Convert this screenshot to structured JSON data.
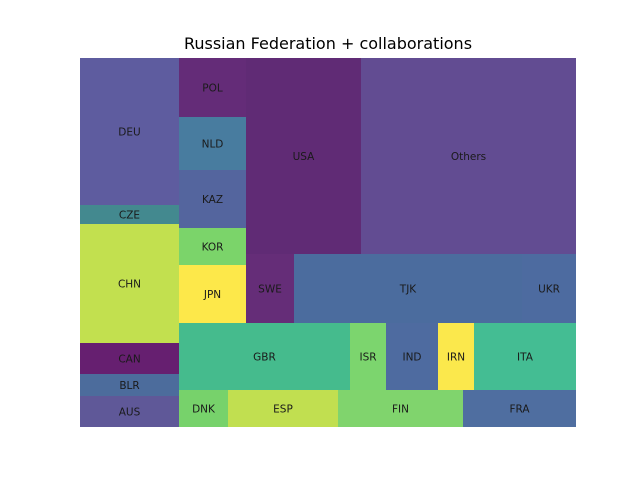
{
  "chart_data": {
    "type": "treemap",
    "title": "Russian Federation + collaborations",
    "items": [
      {
        "label": "DEU",
        "color": "#5e5c9f"
      },
      {
        "label": "CZE",
        "color": "#43898f"
      },
      {
        "label": "CHN",
        "color": "#c2e04f"
      },
      {
        "label": "CAN",
        "color": "#661f70"
      },
      {
        "label": "BLR",
        "color": "#4c6c9c"
      },
      {
        "label": "AUS",
        "color": "#5f5898"
      },
      {
        "label": "POL",
        "color": "#642c78"
      },
      {
        "label": "NLD",
        "color": "#487c9f"
      },
      {
        "label": "KAZ",
        "color": "#54659e"
      },
      {
        "label": "KOR",
        "color": "#7bd46a"
      },
      {
        "label": "JPN",
        "color": "#fde84a"
      },
      {
        "label": "DNK",
        "color": "#77d26b"
      },
      {
        "label": "USA",
        "color": "#602b75"
      },
      {
        "label": "SWE",
        "color": "#652d78"
      },
      {
        "label": "ESP",
        "color": "#c1df50"
      },
      {
        "label": "Others",
        "color": "#624c92"
      },
      {
        "label": "TJK",
        "color": "#4b6c9e"
      },
      {
        "label": "UKR",
        "color": "#4d6ba0"
      },
      {
        "label": "GBR",
        "color": "#45bb8d"
      },
      {
        "label": "ISR",
        "color": "#7cd56e"
      },
      {
        "label": "IND",
        "color": "#4e6ba0"
      },
      {
        "label": "IRN",
        "color": "#fbe84c"
      },
      {
        "label": "ITA",
        "color": "#44bd93"
      },
      {
        "label": "FIN",
        "color": "#80d46d"
      },
      {
        "label": "FRA",
        "color": "#4f6ea0"
      }
    ]
  }
}
